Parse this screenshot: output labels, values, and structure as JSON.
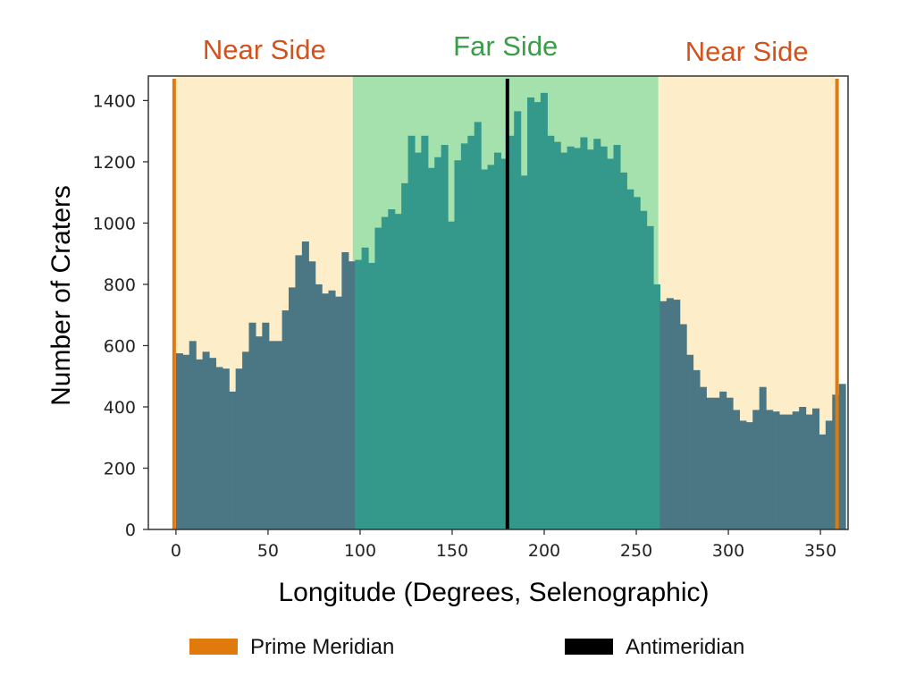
{
  "chart_data": {
    "type": "bar",
    "xlabel": "Longitude (Degrees, Selenographic)",
    "ylabel": "Number of Craters",
    "xlim": [
      -15,
      365
    ],
    "ylim": [
      0,
      1480
    ],
    "x_ticks": [
      0,
      50,
      100,
      150,
      200,
      250,
      300,
      350
    ],
    "y_ticks": [
      0,
      200,
      400,
      600,
      800,
      1000,
      1200,
      1400
    ],
    "bin_width": 3.6,
    "bin_start": 0,
    "values": [
      575,
      570,
      615,
      555,
      580,
      560,
      530,
      525,
      450,
      525,
      580,
      675,
      630,
      675,
      615,
      615,
      715,
      790,
      895,
      940,
      875,
      800,
      770,
      780,
      760,
      905,
      875,
      880,
      920,
      870,
      985,
      1020,
      1045,
      1030,
      1130,
      1285,
      1230,
      1285,
      1180,
      1215,
      1255,
      1005,
      1205,
      1260,
      1285,
      1330,
      1175,
      1190,
      1230,
      1210,
      1285,
      1365,
      1155,
      1410,
      1395,
      1425,
      1285,
      1265,
      1230,
      1250,
      1245,
      1280,
      1240,
      1275,
      1250,
      1210,
      1255,
      1165,
      1110,
      1085,
      1040,
      990,
      800,
      745,
      755,
      750,
      670,
      570,
      520,
      465,
      430,
      430,
      450,
      430,
      390,
      355,
      350,
      390,
      465,
      390,
      385,
      375,
      375,
      385,
      400,
      375,
      395,
      310,
      355,
      440,
      475
    ],
    "regions": [
      {
        "label": "Near Side",
        "from": 0,
        "to": 96,
        "fill": "#fdedc9",
        "label_color": "#d2521e"
      },
      {
        "label": "Far Side",
        "from": 96,
        "to": 262,
        "fill": "#a4e1ad",
        "label_color": "#3a9d48"
      },
      {
        "label": "Near Side",
        "from": 262,
        "to": 358,
        "fill": "#fdedc9",
        "label_color": "#d2521e"
      }
    ],
    "bar_colors": {
      "near_side": "#4b7683",
      "far_side": "#34998a"
    },
    "vlines": [
      {
        "name": "Prime Meridian",
        "x": [
          -1,
          359
        ],
        "color": "#e07a0c"
      },
      {
        "name": "Antimeridian",
        "x": [
          180
        ],
        "color": "#000000"
      }
    ],
    "legend": {
      "placement": "bottom",
      "entries": [
        {
          "label": "Prime Meridian",
          "color": "#e07a0c"
        },
        {
          "label": "Antimeridian",
          "color": "#000000"
        }
      ]
    },
    "grid": false
  }
}
